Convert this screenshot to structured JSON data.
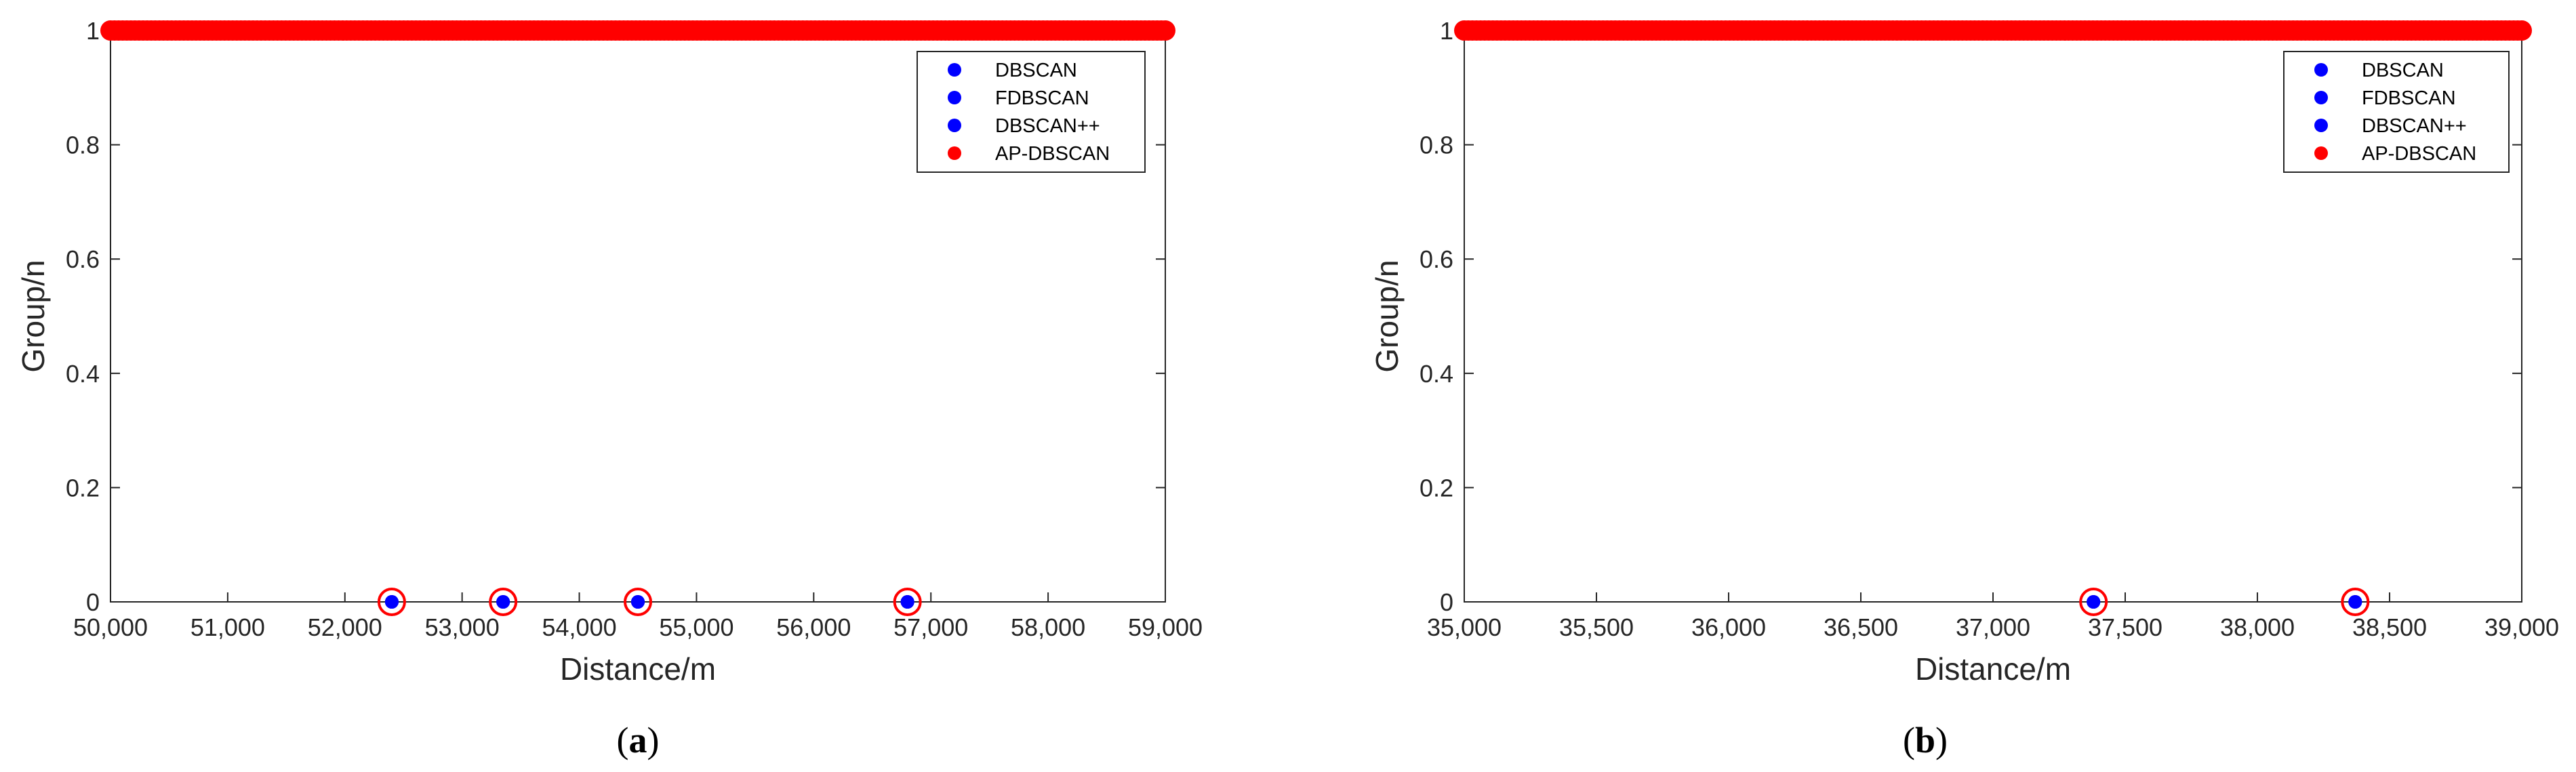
{
  "colors": {
    "red": "#ff0000",
    "blue": "#0000ff"
  },
  "chart_data": [
    {
      "type": "scatter",
      "panel_label": "a",
      "xlabel": "Distance/m",
      "ylabel": "Group/n",
      "xlim": [
        50000,
        59000
      ],
      "ylim": [
        0,
        1
      ],
      "xticks": [
        50000,
        51000,
        52000,
        53000,
        54000,
        55000,
        56000,
        57000,
        58000,
        59000
      ],
      "xtick_labels": [
        "50,000",
        "51,000",
        "52,000",
        "53,000",
        "54,000",
        "55,000",
        "56,000",
        "57,000",
        "58,000",
        "59,000"
      ],
      "yticks": [
        0,
        0.2,
        0.4,
        0.6,
        0.8,
        1
      ],
      "ytick_labels": [
        "0",
        "0.2",
        "0.4",
        "0.6",
        "0.8",
        "1"
      ],
      "grid": false,
      "legend": "top-right",
      "series": [
        {
          "name": "DBSCAN",
          "color": "#0000ff",
          "marker": "filled-dot",
          "points": [
            [
              52400,
              0
            ],
            [
              53350,
              0
            ],
            [
              54500,
              0
            ],
            [
              56800,
              0
            ]
          ]
        },
        {
          "name": "FDBSCAN",
          "color": "#0000ff",
          "marker": "filled-dot",
          "points": [
            [
              52400,
              0
            ],
            [
              53350,
              0
            ],
            [
              54500,
              0
            ],
            [
              56800,
              0
            ]
          ]
        },
        {
          "name": "DBSCAN++",
          "color": "#0000ff",
          "marker": "filled-dot",
          "points": [
            [
              52400,
              0
            ],
            [
              53350,
              0
            ],
            [
              54500,
              0
            ],
            [
              56800,
              0
            ]
          ]
        },
        {
          "name": "AP-DBSCAN",
          "color": "#ff0000",
          "marker": "filled-dot",
          "points_note": "continuous at y=1",
          "dense_y1_range": [
            50000,
            59000
          ],
          "points": [
            [
              52400,
              0
            ],
            [
              53350,
              0
            ],
            [
              54500,
              0
            ],
            [
              56800,
              0
            ]
          ]
        }
      ]
    },
    {
      "type": "scatter",
      "panel_label": "b",
      "xlabel": "Distance/m",
      "ylabel": "Group/n",
      "xlim": [
        35000,
        39000
      ],
      "ylim": [
        0,
        1
      ],
      "xticks": [
        35000,
        35500,
        36000,
        36500,
        37000,
        37500,
        38000,
        38500,
        39000
      ],
      "xtick_labels": [
        "35,000",
        "35,500",
        "36,000",
        "36,500",
        "37,000",
        "37,500",
        "38,000",
        "38,500",
        "39,000"
      ],
      "yticks": [
        0,
        0.2,
        0.4,
        0.6,
        0.8,
        1
      ],
      "ytick_labels": [
        "0",
        "0.2",
        "0.4",
        "0.6",
        "0.8",
        "1"
      ],
      "grid": false,
      "legend": "top-right",
      "series": [
        {
          "name": "DBSCAN",
          "color": "#0000ff",
          "marker": "filled-dot",
          "points": [
            [
              37380,
              0
            ],
            [
              38370,
              0
            ]
          ]
        },
        {
          "name": "FDBSCAN",
          "color": "#0000ff",
          "marker": "filled-dot",
          "points": [
            [
              37380,
              0
            ],
            [
              38370,
              0
            ]
          ]
        },
        {
          "name": "DBSCAN++",
          "color": "#0000ff",
          "marker": "filled-dot",
          "points": [
            [
              37380,
              0
            ],
            [
              38370,
              0
            ]
          ]
        },
        {
          "name": "AP-DBSCAN",
          "color": "#ff0000",
          "marker": "filled-dot",
          "dense_y1_range": [
            35000,
            39000
          ],
          "points": [
            [
              37380,
              0
            ],
            [
              38370,
              0
            ]
          ]
        }
      ]
    }
  ]
}
